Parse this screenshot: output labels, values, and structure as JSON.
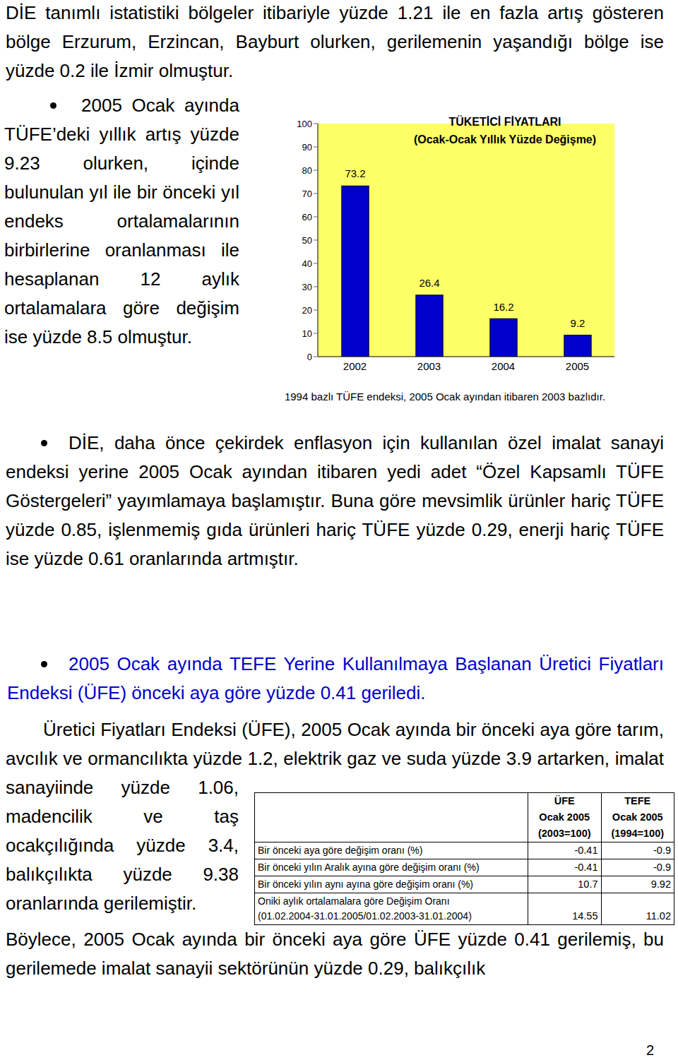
{
  "intro": "DİE tanımlı istatistiki bölgeler itibariyle yüzde 1.21 ile en fazla artış gösteren bölge Erzurum, Erzincan, Bayburt olurken, gerilemenin yaşandığı bölge ise yüzde 0.2 ile İzmir olmuştur.",
  "bullet_tufe": "2005 Ocak ayında TÜFE’deki yıllık artış yüzde 9.23 olurken, içinde bulunulan yıl ile bir önceki yıl endeks ortalamalarının birbirlerine oranlanması ile hesaplanan 12 aylık ortalamalara göre değişim ise yüzde 8.5 olmuştur.",
  "chart_data": {
    "type": "bar",
    "title": "TÜKETİCİ FİYATLARI",
    "subtitle": "(Ocak-Ocak Yıllık Yüzde Değişme)",
    "categories": [
      "2002",
      "2003",
      "2004",
      "2005"
    ],
    "values": [
      73.2,
      26.4,
      16.2,
      9.2
    ],
    "color": "#0000cc",
    "ylim": [
      0,
      100
    ],
    "yticks": [
      0,
      10,
      20,
      30,
      40,
      50,
      60,
      70,
      80,
      90,
      100
    ],
    "grid": false,
    "data_labels": true
  },
  "chart_note": "1994 bazlı TÜFE endeksi, 2005 Ocak ayından itibaren 2003 bazlıdır.",
  "bullet_ozel": "DİE, daha önce çekirdek enflasyon için kullanılan özel imalat sanayi endeksi yerine 2005 Ocak ayından itibaren yedi adet “Özel Kapsamlı TÜFE Göstergeleri” yayımlamaya başlamıştır. Buna göre mevsimlik ürünler hariç TÜFE yüzde 0.85, işlenmemiş gıda ürünleri hariç TÜFE yüzde 0.29, enerji hariç TÜFE ise yüzde 0.61 oranlarında artmıştır.",
  "bullet_ufe": "2005 Ocak ayında TEFE Yerine Kullanılmaya Başlanan Üretici Fiyatları Endeksi (ÜFE) önceki aya göre yüzde 0.41 geriledi.",
  "ufe_paragraph": "Üretici Fiyatları Endeksi (ÜFE), 2005 Ocak ayında bir önceki aya göre tarım, avcılık ve ormancılıkta yüzde 1.2, elektrik gaz ve suda yüzde 3.9 artarken, imalat sanayiinde yüzde 1.06, madencilik ve taş ocakçılığında yüzde 3.4, balıkçılıkta yüzde 9.38 oranlarında gerilemiştir.",
  "closing": "Böylece, 2005 Ocak ayında bir önceki aya göre ÜFE yüzde 0.41 gerilemiş, bu gerilemede imalat sanayii sektörünün yüzde 0.29, balıkçılık",
  "table": {
    "header": [
      [
        "ÜFE",
        "TEFE"
      ],
      [
        "Ocak 2005",
        "Ocak 2005"
      ],
      [
        "(2003=100)",
        "(1994=100)"
      ]
    ],
    "rows": [
      [
        [
          "Bir önceki aya göre değişim oranı (%)"
        ],
        "-0.41",
        "-0.9"
      ],
      [
        [
          "Bir önceki yılın Aralık ayına göre değişim oranı (%)"
        ],
        "-0.41",
        "-0.9"
      ],
      [
        [
          "Bir önceki yılın aynı ayına göre değişim oranı (%)"
        ],
        "10.7",
        "9.92"
      ],
      [
        [
          "Oniki aylık ortalamalara göre Değişim Oranı",
          "(01.02.2004-31.01.2005/01.02.2003-31.01.2004)"
        ],
        "14.55",
        "11.02"
      ]
    ]
  },
  "page_number": "2"
}
